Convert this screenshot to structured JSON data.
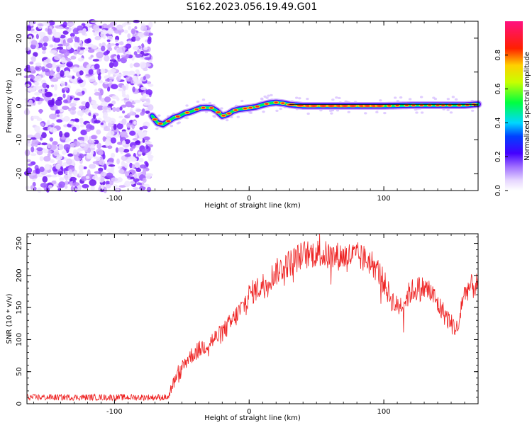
{
  "title": "S162.2023.056.19.49.G01",
  "chart_data": [
    {
      "type": "heatmap",
      "xlabel": "Height of straight line (km)",
      "ylabel": "Frequency (Hz)",
      "xlim": [
        -165,
        170
      ],
      "ylim": [
        -25,
        25
      ],
      "xticks": [
        -100,
        0,
        100
      ],
      "yticks": [
        -20,
        -10,
        0,
        10,
        20
      ],
      "colorbar": {
        "label": "Normalized spectral amplitude",
        "range": [
          0,
          1
        ],
        "ticks": [
          "0.0",
          "0.2",
          "0.4",
          "0.6",
          "0.8"
        ]
      },
      "noise_region_x": [
        -165,
        -73
      ],
      "ridge": [
        [
          -72,
          -3
        ],
        [
          -68,
          -5
        ],
        [
          -64,
          -5.5
        ],
        [
          -60,
          -4.5
        ],
        [
          -56,
          -3.5
        ],
        [
          -52,
          -3
        ],
        [
          -48,
          -2.2
        ],
        [
          -44,
          -1.8
        ],
        [
          -40,
          -1.2
        ],
        [
          -36,
          -0.6
        ],
        [
          -32,
          -0.5
        ],
        [
          -28,
          -0.6
        ],
        [
          -24,
          -1.5
        ],
        [
          -20,
          -3
        ],
        [
          -16,
          -2.5
        ],
        [
          -12,
          -1.5
        ],
        [
          -8,
          -1
        ],
        [
          -4,
          -0.8
        ],
        [
          0,
          -0.6
        ],
        [
          5,
          -0.3
        ],
        [
          10,
          0.3
        ],
        [
          15,
          0.8
        ],
        [
          20,
          1
        ],
        [
          25,
          0.8
        ],
        [
          30,
          0.4
        ],
        [
          40,
          0
        ],
        [
          60,
          0
        ],
        [
          80,
          0
        ],
        [
          100,
          0
        ],
        [
          120,
          0.2
        ],
        [
          140,
          0.2
        ],
        [
          160,
          0.2
        ],
        [
          170,
          0.5
        ]
      ]
    },
    {
      "type": "line",
      "xlabel": "Height of straight line (km)",
      "ylabel": "SNR (10 * v/v)",
      "xlim": [
        -165,
        170
      ],
      "ylim": [
        0,
        265
      ],
      "xticks": [
        -100,
        0,
        100
      ],
      "yticks": [
        0,
        50,
        100,
        150,
        200,
        250
      ],
      "series_color": "#ee2222",
      "envelope": [
        [
          -165,
          10
        ],
        [
          -60,
          10
        ],
        [
          -57,
          30
        ],
        [
          -52,
          45
        ],
        [
          -46,
          70
        ],
        [
          -40,
          80
        ],
        [
          -30,
          95
        ],
        [
          -20,
          110
        ],
        [
          -12,
          130
        ],
        [
          -5,
          150
        ],
        [
          0,
          170
        ],
        [
          10,
          185
        ],
        [
          20,
          205
        ],
        [
          30,
          220
        ],
        [
          40,
          232
        ],
        [
          50,
          235
        ],
        [
          60,
          230
        ],
        [
          70,
          230
        ],
        [
          80,
          230
        ],
        [
          90,
          222
        ],
        [
          95,
          210
        ],
        [
          100,
          190
        ],
        [
          105,
          165
        ],
        [
          110,
          150
        ],
        [
          115,
          160
        ],
        [
          120,
          175
        ],
        [
          125,
          180
        ],
        [
          130,
          180
        ],
        [
          135,
          175
        ],
        [
          140,
          155
        ],
        [
          145,
          140
        ],
        [
          150,
          125
        ],
        [
          155,
          115
        ],
        [
          158,
          160
        ],
        [
          162,
          180
        ],
        [
          170,
          185
        ]
      ]
    }
  ]
}
